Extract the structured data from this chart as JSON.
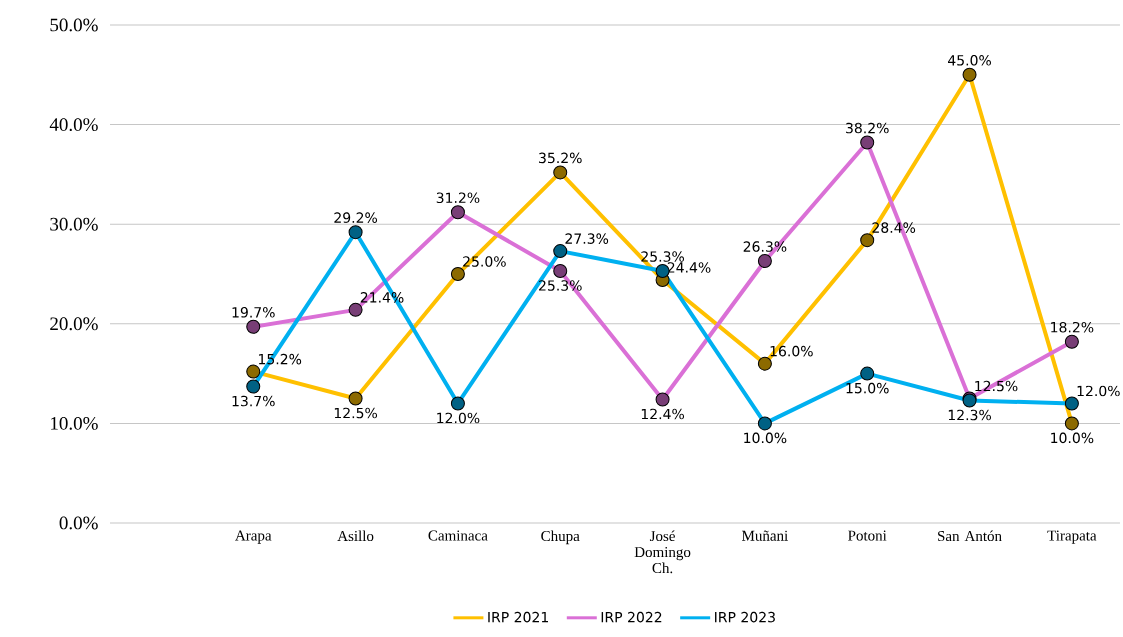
{
  "chart_data": {
    "type": "line",
    "categories": [
      "Arapa",
      "Asillo",
      "Caminaca",
      "Chupa",
      "José Domingo Ch.",
      "Muñani",
      "Potoni",
      "San Antón",
      "Tirapata"
    ],
    "series": [
      {
        "name": "IRP 2021",
        "color": "#ffc000",
        "values": [
          15.2,
          12.5,
          25.0,
          35.2,
          24.4,
          16.0,
          28.4,
          45.0,
          10.0
        ],
        "value_labels": [
          "15.2%",
          "12.5%",
          "25.0%",
          "35.2%",
          "24.4%",
          "16.0%",
          "28.4%",
          "45.0%",
          "10.0%"
        ]
      },
      {
        "name": "IRP 2022",
        "color": "#da70d6",
        "values": [
          19.7,
          21.4,
          31.2,
          25.3,
          12.4,
          26.3,
          38.2,
          12.5,
          18.2
        ],
        "value_labels": [
          "19.7%",
          "21.4%",
          "31.2%",
          "25.3%",
          "12.4%",
          "26.3%",
          "38.2%",
          "12.5%",
          "18.2%"
        ]
      },
      {
        "name": "IRP 2023",
        "color": "#00b0f0",
        "values": [
          13.7,
          29.2,
          12.0,
          27.3,
          25.3,
          10.0,
          15.0,
          12.3,
          12.0
        ],
        "value_labels": [
          "13.7%",
          "29.2%",
          "12.0%",
          "27.3%",
          "25.3%",
          "10.0%",
          "15.0%",
          "12.3%",
          "12.0%"
        ]
      }
    ],
    "ylim": [
      0,
      50
    ],
    "yticks": [
      {
        "value": 0,
        "label": "0.0%"
      },
      {
        "value": 10,
        "label": "10.0%"
      },
      {
        "value": 20,
        "label": "20.0%"
      },
      {
        "value": 30,
        "label": "30.0%"
      },
      {
        "value": 40,
        "label": "40.0%"
      },
      {
        "value": 50,
        "label": "50.0%"
      }
    ],
    "grid": "y",
    "legend": "bottom",
    "marker": "circle",
    "line_style": "solid"
  }
}
